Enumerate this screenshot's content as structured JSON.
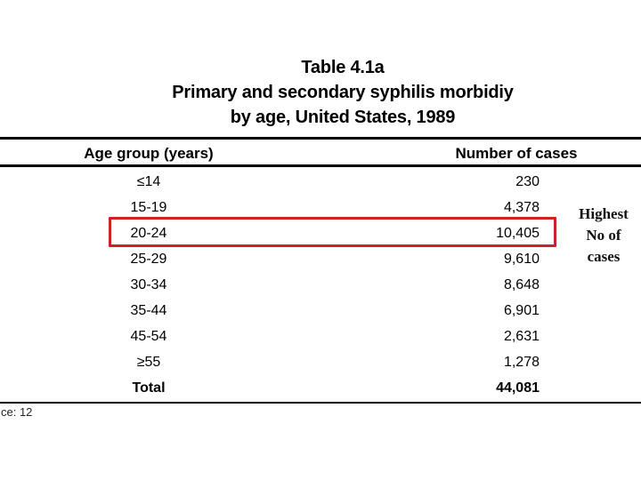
{
  "slide": {
    "title_lines": [
      "Table 4.1a",
      "Primary and secondary syphilis morbidiy",
      "by age, United States, 1989"
    ],
    "footer": "ce: 12"
  },
  "table": {
    "columns": [
      "Age group (years)",
      "Number of cases"
    ],
    "rows": [
      {
        "age": "≤14",
        "cases": "230"
      },
      {
        "age": "15-19",
        "cases": "4,378"
      },
      {
        "age": "20-24",
        "cases": "10,405"
      },
      {
        "age": "25-29",
        "cases": "9,610"
      },
      {
        "age": "30-34",
        "cases": "8,648"
      },
      {
        "age": "35-44",
        "cases": "6,901"
      },
      {
        "age": "45-54",
        "cases": "2,631"
      },
      {
        "age": "≥55",
        "cases": "1,278"
      },
      {
        "age": "Total",
        "cases": "44,081",
        "bold": true
      }
    ],
    "highlight_row": "20-24"
  },
  "annotation": {
    "lines": [
      "Highest",
      "No of",
      "cases"
    ]
  },
  "colors": {
    "highlight_border": "#cc2326",
    "text": "#000000",
    "background": "#ffffff"
  },
  "chart_data": {
    "type": "table",
    "title": "Table 4.1a Primary and secondary syphilis morbidiy by age, United States, 1989",
    "columns": [
      "Age group (years)",
      "Number of cases"
    ],
    "rows": [
      [
        "≤14",
        230
      ],
      [
        "15-19",
        4378
      ],
      [
        "20-24",
        10405
      ],
      [
        "25-29",
        9610
      ],
      [
        "30-34",
        8648
      ],
      [
        "35-44",
        6901
      ],
      [
        "45-54",
        2631
      ],
      [
        "≥55",
        1278
      ],
      [
        "Total",
        44081
      ]
    ],
    "highlight": {
      "row": "20-24",
      "note": "Highest No of cases"
    }
  }
}
